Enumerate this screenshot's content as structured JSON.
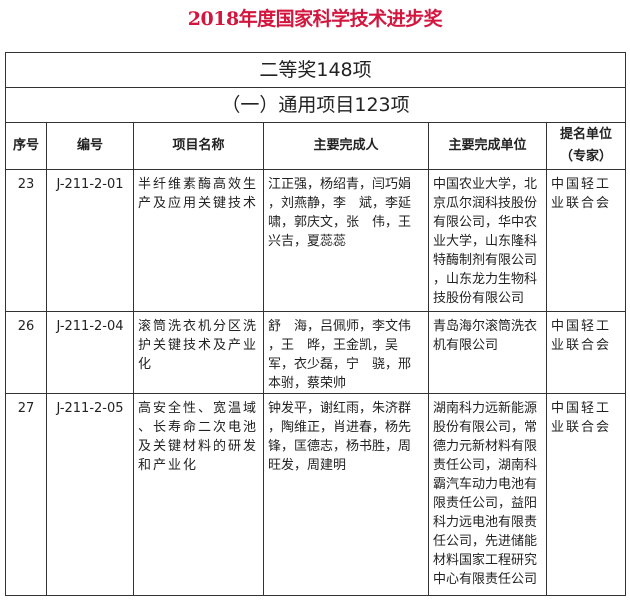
{
  "title": "2018年度国家科学技术进步奖",
  "section": "二等奖148项",
  "subsection": "（一）通用项目123项",
  "headers": [
    "序号",
    "编号",
    "项目名称",
    "主要完成人",
    "主要完成单位",
    "提名单位",
    "（专家）"
  ],
  "rows": [
    {
      "seq": "23",
      "code": "J-211-2-01",
      "name": [
        "半纤维素酶高效生",
        "产及应用关键技术"
      ],
      "people": [
        "江正强，杨绍青，闫巧娟",
        "，刘燕静，李　斌，李延",
        "啸，郭庆文，张　伟，王",
        "兴吉，夏蕊蕊"
      ],
      "units": [
        "中国农业大学，北",
        "京瓜尔润科技股份",
        "有限公司，华中农",
        "业大学，山东隆科",
        "特酶制剂有限公司",
        "，山东龙力生物科",
        "技股份有限公司"
      ],
      "nominator": [
        "中国轻工",
        "业联合会"
      ]
    },
    {
      "seq": "26",
      "code": "J-211-2-04",
      "name": [
        "滚筒洗衣机分区洗",
        "护关键技术及产业",
        "化"
      ],
      "people": [
        "舒　海，吕佩师，李文伟",
        "，王　晔，王金凯，吴",
        "军，衣少磊，宁　骁，邢",
        "本驸，蔡荣帅"
      ],
      "units": [
        "青岛海尔滚筒洗衣",
        "机有限公司"
      ],
      "nominator": [
        "中国轻工",
        "业联合会"
      ]
    },
    {
      "seq": "27",
      "code": "J-211-2-05",
      "name": [
        "高安全性、宽温域",
        "、长寿命二次电池",
        "及关键材料的研发",
        "和产业化"
      ],
      "people": [
        "钟发平，谢红雨，朱济群",
        "，陶维正，肖进春，杨先",
        "锋，匡德志，杨书胜，周",
        "旺发，周建明"
      ],
      "units": [
        "湖南科力远新能源",
        "股份有限公司，常",
        "德力元新材料有限",
        "责任公司，湖南科",
        "霸汽车动力电池有",
        "限责任公司，益阳",
        "科力远电池有限责",
        "任公司，先进储能",
        "材料国家工程研究",
        "中心有限责任公司"
      ],
      "nominator": [
        "中国轻工",
        "业联合会"
      ]
    }
  ]
}
